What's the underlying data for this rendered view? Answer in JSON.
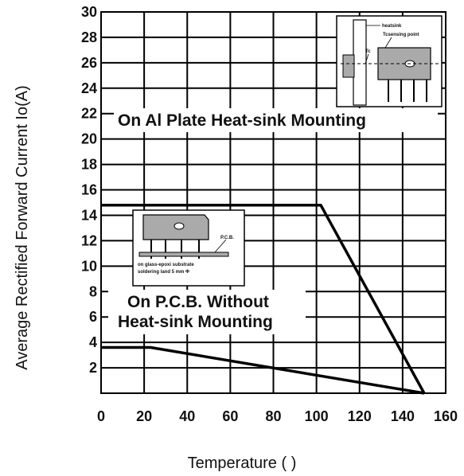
{
  "chart_data": {
    "type": "line",
    "xlabel": "Temperature (   )",
    "ylabel": "Average Rectified Forward Current Io(A)",
    "xlim": [
      0,
      160
    ],
    "ylim": [
      0,
      30
    ],
    "x_ticks": [
      "0",
      "20",
      "40",
      "60",
      "80",
      "100",
      "120",
      "140",
      "160"
    ],
    "y_ticks": [
      "2",
      "4",
      "6",
      "8",
      "10",
      "12",
      "14",
      "16",
      "18",
      "20",
      "22",
      "24",
      "26",
      "28",
      "30"
    ],
    "grid": true,
    "series": [
      {
        "x": [
          0,
          102,
          150
        ],
        "y": [
          14.8,
          14.8,
          0
        ]
      },
      {
        "x": [
          0,
          23,
          150
        ],
        "y": [
          3.6,
          3.6,
          0
        ]
      }
    ],
    "annotations": [
      {
        "text": "On Al Plate Heat-sink Mounting"
      },
      {
        "text": "On P.C.B. Without"
      },
      {
        "text": "Heat-sink Mounting"
      }
    ],
    "inset_labels": {
      "top_heatsink": "heatsink",
      "top_point": "Tcsensing point",
      "top_tc": "Tc",
      "bottom_pcb": "P.C.B.",
      "bottom_line1": "on glass-epoxi substrate",
      "bottom_line2": "soldering land 5 mm Φ"
    }
  }
}
